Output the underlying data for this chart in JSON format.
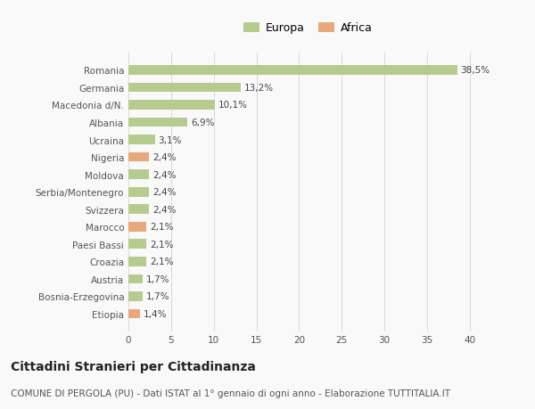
{
  "categories": [
    "Romania",
    "Germania",
    "Macedonia d/N.",
    "Albania",
    "Ucraina",
    "Nigeria",
    "Moldova",
    "Serbia/Montenegro",
    "Svizzera",
    "Marocco",
    "Paesi Bassi",
    "Croazia",
    "Austria",
    "Bosnia-Erzegovina",
    "Etiopia"
  ],
  "values": [
    38.5,
    13.2,
    10.1,
    6.9,
    3.1,
    2.4,
    2.4,
    2.4,
    2.4,
    2.1,
    2.1,
    2.1,
    1.7,
    1.7,
    1.4
  ],
  "labels": [
    "38,5%",
    "13,2%",
    "10,1%",
    "6,9%",
    "3,1%",
    "2,4%",
    "2,4%",
    "2,4%",
    "2,4%",
    "2,1%",
    "2,1%",
    "2,1%",
    "1,7%",
    "1,7%",
    "1,4%"
  ],
  "colors": [
    "#b5cc8e",
    "#b5cc8e",
    "#b5cc8e",
    "#b5cc8e",
    "#b5cc8e",
    "#e8a87c",
    "#b5cc8e",
    "#b5cc8e",
    "#b5cc8e",
    "#e8a87c",
    "#b5cc8e",
    "#b5cc8e",
    "#b5cc8e",
    "#b5cc8e",
    "#e8a87c"
  ],
  "legend_europa_color": "#b5cc8e",
  "legend_africa_color": "#e8a87c",
  "title": "Cittadini Stranieri per Cittadinanza",
  "subtitle": "COMUNE DI PERGOLA (PU) - Dati ISTAT al 1° gennaio di ogni anno - Elaborazione TUTTITALIA.IT",
  "xlim": [
    0,
    42
  ],
  "xticks": [
    0,
    5,
    10,
    15,
    20,
    25,
    30,
    35,
    40
  ],
  "bg_color": "#f9f9f9",
  "grid_color": "#d8d8d8",
  "bar_height": 0.55,
  "title_fontsize": 10,
  "subtitle_fontsize": 7.5,
  "label_fontsize": 7.5,
  "tick_fontsize": 7.5,
  "legend_fontsize": 9
}
